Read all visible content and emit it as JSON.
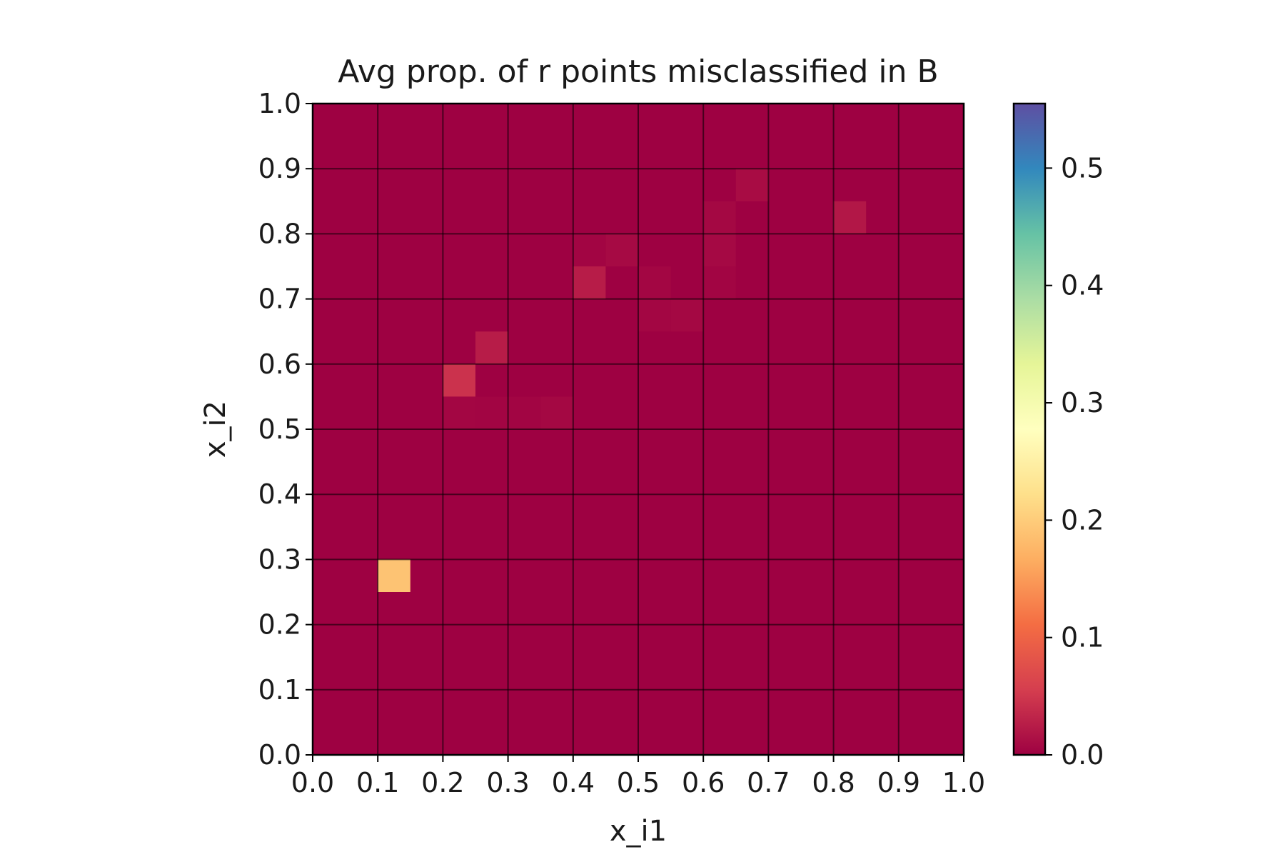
{
  "chart_data": {
    "type": "heatmap",
    "title": "Avg prop. of r points misclassified in B",
    "xlabel": "x_i1",
    "ylabel": "x_i2",
    "xlim": [
      0,
      1
    ],
    "ylim": [
      0,
      1
    ],
    "x_ticks": [
      "0.0",
      "0.1",
      "0.2",
      "0.3",
      "0.4",
      "0.5",
      "0.6",
      "0.7",
      "0.8",
      "0.9",
      "1.0"
    ],
    "y_ticks": [
      "0.0",
      "0.1",
      "0.2",
      "0.3",
      "0.4",
      "0.5",
      "0.6",
      "0.7",
      "0.8",
      "0.9",
      "1.0"
    ],
    "grid": true,
    "cell_size": 0.05,
    "base_value": 0.0,
    "cells": [
      {
        "x": 0.1,
        "y": 0.25,
        "value": 0.19
      },
      {
        "x": 0.2,
        "y": 0.55,
        "value": 0.045
      },
      {
        "x": 0.25,
        "y": 0.6,
        "value": 0.025
      },
      {
        "x": 0.4,
        "y": 0.7,
        "value": 0.025
      },
      {
        "x": 0.8,
        "y": 0.8,
        "value": 0.02
      },
      {
        "x": 0.65,
        "y": 0.85,
        "value": 0.01
      },
      {
        "x": 0.45,
        "y": 0.75,
        "value": 0.008
      },
      {
        "x": 0.6,
        "y": 0.75,
        "value": 0.007
      },
      {
        "x": 0.6,
        "y": 0.8,
        "value": 0.006
      },
      {
        "x": 0.5,
        "y": 0.7,
        "value": 0.005
      },
      {
        "x": 0.5,
        "y": 0.65,
        "value": 0.005
      },
      {
        "x": 0.55,
        "y": 0.65,
        "value": 0.006
      },
      {
        "x": 0.6,
        "y": 0.7,
        "value": 0.004
      },
      {
        "x": 0.4,
        "y": 0.75,
        "value": 0.004
      },
      {
        "x": 0.35,
        "y": 0.5,
        "value": 0.006
      },
      {
        "x": 0.3,
        "y": 0.5,
        "value": 0.004
      },
      {
        "x": 0.2,
        "y": 0.5,
        "value": 0.005
      },
      {
        "x": 0.25,
        "y": 0.5,
        "value": 0.004
      }
    ],
    "colorbar": {
      "colormap": "Spectral",
      "min": 0.0,
      "max": 0.555,
      "ticks": [
        0.0,
        0.1,
        0.2,
        0.3,
        0.4,
        0.5
      ],
      "tick_labels": [
        "0.0",
        "0.1",
        "0.2",
        "0.3",
        "0.4",
        "0.5"
      ]
    }
  }
}
